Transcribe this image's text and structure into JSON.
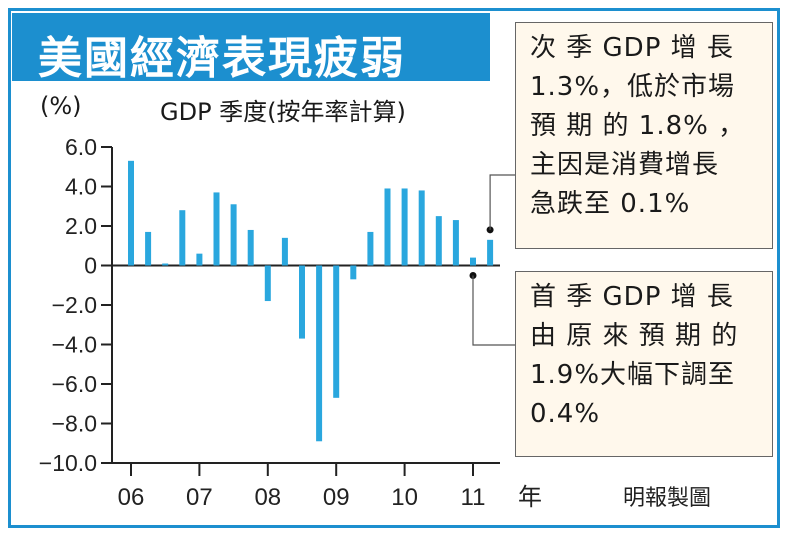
{
  "title": "美國經濟表現疲弱",
  "y_unit": "(%)",
  "subtitle": "GDP 季度(按年率計算)",
  "credit": "明報製圖",
  "accent_color": "#1c8fcf",
  "bar_color": "#2aa7de",
  "annotations": [
    {
      "name": "latest-quarter-note",
      "text": "次 季 GDP 增 長\n1.3%，低於市場\n預 期 的 1.8% ，\n主因是消費增長\n急跌至 0.1%"
    },
    {
      "name": "first-quarter-note",
      "text": "首 季 GDP 增 長\n由 原 來 預 期 的\n1.9%大幅下調至\n0.4%"
    }
  ],
  "chart_data": {
    "type": "bar",
    "ylim": [
      -10.0,
      6.0
    ],
    "yticks": [
      "6.0",
      "4.0",
      "2.0",
      "0",
      "-2.0",
      "-4.0",
      "-6.0",
      "-8.0",
      "-10.0"
    ],
    "x_tick_labels": [
      "06",
      "07",
      "08",
      "09",
      "10",
      "11"
    ],
    "x_unit": "年",
    "series": [
      {
        "values": [
          5.3,
          1.7,
          0.1,
          2.8,
          0.6,
          3.7,
          3.1,
          1.8,
          -1.8,
          1.4,
          -3.7,
          -8.9,
          -6.7,
          -0.7,
          1.7,
          3.9,
          3.9,
          3.8,
          2.5,
          2.3,
          0.4,
          1.3
        ]
      }
    ]
  }
}
